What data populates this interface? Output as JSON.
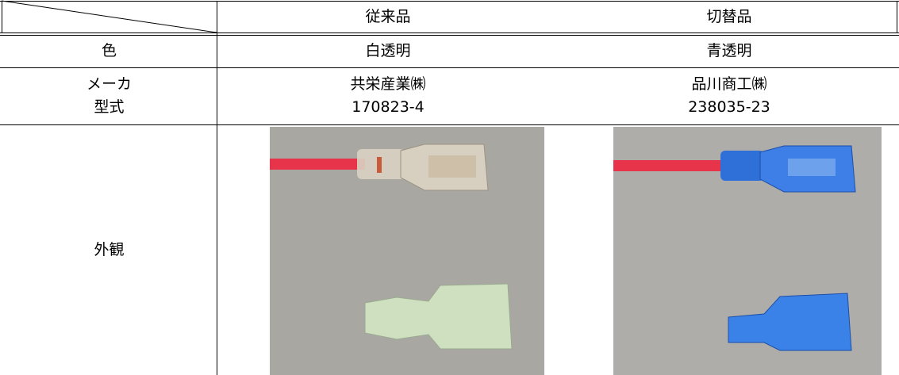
{
  "table": {
    "header": [
      "従来品",
      "切替品"
    ],
    "rows": [
      [
        "色",
        "白透明",
        "青透明"
      ],
      [
        "メーカ",
        "共栄産業㈱",
        "品川商工㈱"
      ],
      [
        "型式",
        "170823-4",
        "238035-23"
      ],
      [
        "外観"
      ]
    ]
  }
}
